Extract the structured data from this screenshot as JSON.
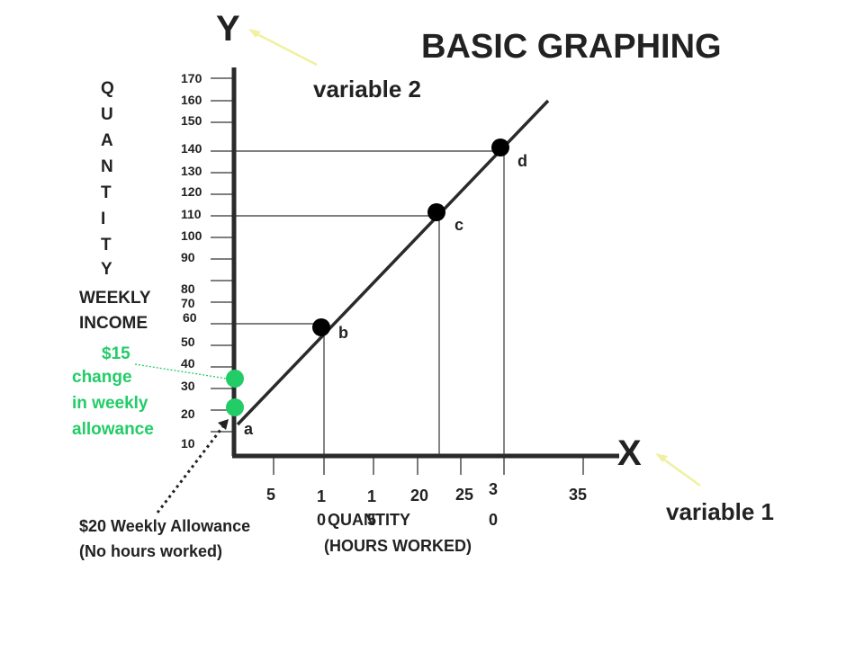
{
  "title": "BASIC GRAPHING",
  "y_axis": {
    "letter": "Y",
    "callout": "variable 2",
    "vertical_label": [
      "Q",
      "U",
      "A",
      "N",
      "T",
      "I",
      "T",
      "Y"
    ],
    "income_label": [
      "WEEKLY",
      "INCOME"
    ],
    "ticks": [
      "170",
      "160",
      "150",
      "140",
      "130",
      "120",
      "110",
      "100",
      "90",
      "80",
      "70",
      "60",
      "50",
      "40",
      "30",
      "20",
      "10"
    ]
  },
  "x_axis": {
    "letter": "X",
    "callout": "variable 1",
    "ticks": [
      "5",
      "1",
      "0",
      "1",
      "5",
      "20",
      "25",
      "3",
      "0",
      "35"
    ],
    "label": [
      "QUANTITY",
      "(HOURS WORKED)"
    ]
  },
  "points": [
    {
      "label": "a"
    },
    {
      "label": "b"
    },
    {
      "label": "c"
    },
    {
      "label": "d"
    }
  ],
  "annotations": {
    "change_amount": "$15",
    "change_text": [
      "change",
      "in weekly",
      "allowance"
    ],
    "allowance_text": [
      "$20 Weekly Allowance",
      "(No hours worked)"
    ]
  },
  "colors": {
    "text": "#222222",
    "axis": "#2a2a2a",
    "points": "#000000",
    "highlight": "#22cc66",
    "callout_arrow": "#f0f0a0"
  }
}
